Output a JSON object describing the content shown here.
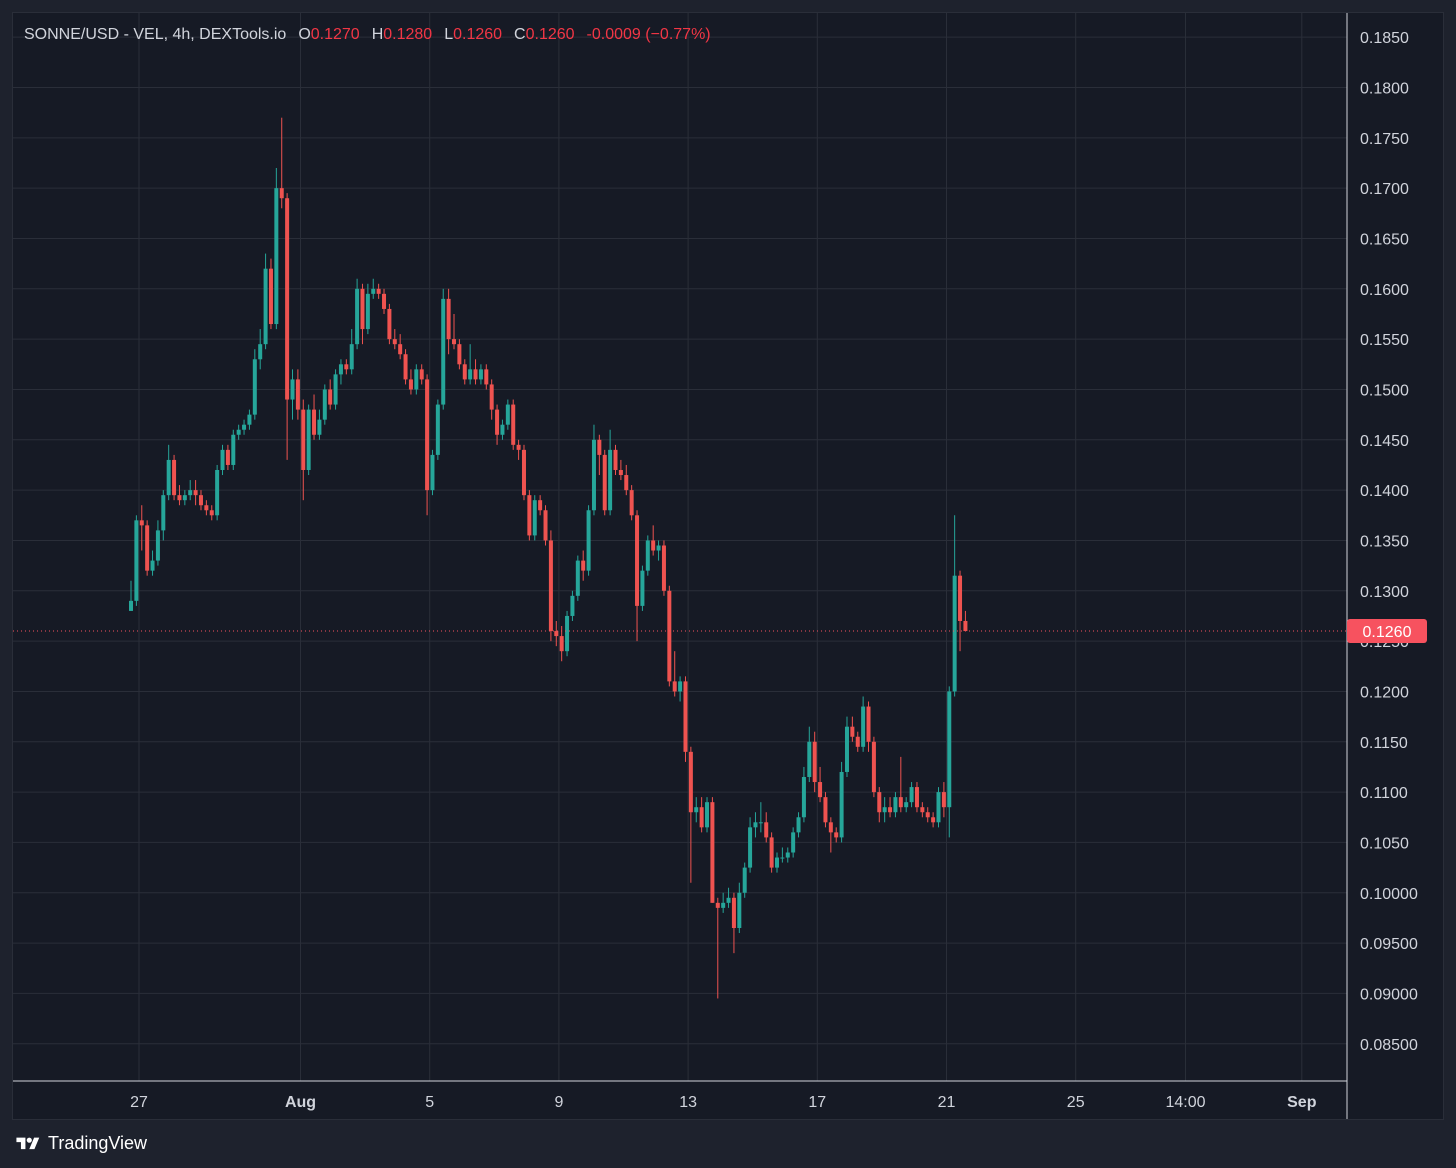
{
  "legend": {
    "symbol": "SONNE/USD - VEL, 4h, DEXTools.io",
    "open_label": "O",
    "open": "0.1270",
    "high_label": "H",
    "high": "0.1280",
    "low_label": "L",
    "low": "0.1260",
    "close_label": "C",
    "close": "0.1260",
    "change": "-0.0009 (−0.77%)"
  },
  "footer": {
    "brand": "TradingView",
    "logo_icon": "tradingview-logo-icon"
  },
  "colors": {
    "up": "#26a69a",
    "down": "#ef5350",
    "grid": "#2a2e39",
    "text": "#d1d4dc",
    "price_tag": "#f7525f",
    "background": "#161a25"
  },
  "chart_data": {
    "type": "candlestick",
    "title": "SONNE/USD - VEL, 4h, DEXTools.io",
    "interval": "4h",
    "last_price": {
      "value": 0.126,
      "label": "0.1260"
    },
    "y_axis": {
      "side": "right",
      "ylim": [
        0.0813,
        0.1874
      ],
      "ticks": [
        0.185,
        0.18,
        0.175,
        0.17,
        0.165,
        0.16,
        0.155,
        0.15,
        0.145,
        0.14,
        0.135,
        0.13,
        0.125,
        0.12,
        0.115,
        0.11,
        0.105,
        0.1,
        0.095,
        0.09,
        0.085
      ],
      "tick_labels": [
        "0.1850",
        "0.1800",
        "0.1750",
        "0.1700",
        "0.1650",
        "0.1600",
        "0.1550",
        "0.1500",
        "0.1450",
        "0.1400",
        "0.1350",
        "0.1300",
        "0.1250",
        "0.1200",
        "0.1150",
        "0.1100",
        "0.1050",
        "0.10000",
        "0.09500",
        "0.09000",
        "0.08500"
      ]
    },
    "x_axis": {
      "ticks": [
        {
          "label": "27",
          "day": 0,
          "bold": false
        },
        {
          "label": "Aug",
          "day": 5,
          "bold": true
        },
        {
          "label": "5",
          "day": 9,
          "bold": false
        },
        {
          "label": "9",
          "day": 13,
          "bold": false
        },
        {
          "label": "13",
          "day": 17,
          "bold": false
        },
        {
          "label": "17",
          "day": 21,
          "bold": false
        },
        {
          "label": "21",
          "day": 25,
          "bold": false
        },
        {
          "label": "25",
          "day": 29,
          "bold": false
        },
        {
          "label": "14:00",
          "day": 32.4,
          "bold": false
        },
        {
          "label": "Sep",
          "day": 36,
          "bold": true
        }
      ]
    },
    "grid": true,
    "candles": [
      [
        0.128,
        0.131,
        0.128,
        0.129
      ],
      [
        0.129,
        0.1375,
        0.1285,
        0.137
      ],
      [
        0.137,
        0.1385,
        0.134,
        0.1365
      ],
      [
        0.1365,
        0.137,
        0.1315,
        0.132
      ],
      [
        0.132,
        0.134,
        0.1315,
        0.133
      ],
      [
        0.133,
        0.137,
        0.1325,
        0.136
      ],
      [
        0.136,
        0.14,
        0.135,
        0.1395
      ],
      [
        0.1395,
        0.1445,
        0.139,
        0.143
      ],
      [
        0.143,
        0.1435,
        0.139,
        0.1395
      ],
      [
        0.1395,
        0.1405,
        0.1385,
        0.139
      ],
      [
        0.139,
        0.14,
        0.1385,
        0.1395
      ],
      [
        0.1395,
        0.141,
        0.139,
        0.14
      ],
      [
        0.14,
        0.141,
        0.1385,
        0.1395
      ],
      [
        0.1395,
        0.14,
        0.138,
        0.1385
      ],
      [
        0.1385,
        0.139,
        0.1375,
        0.138
      ],
      [
        0.138,
        0.1385,
        0.137,
        0.1375
      ],
      [
        0.1375,
        0.1425,
        0.137,
        0.142
      ],
      [
        0.142,
        0.1445,
        0.1415,
        0.144
      ],
      [
        0.144,
        0.1445,
        0.142,
        0.1425
      ],
      [
        0.1425,
        0.146,
        0.142,
        0.1455
      ],
      [
        0.1455,
        0.1465,
        0.145,
        0.146
      ],
      [
        0.146,
        0.147,
        0.1455,
        0.1465
      ],
      [
        0.1465,
        0.148,
        0.146,
        0.1475
      ],
      [
        0.1475,
        0.154,
        0.147,
        0.153
      ],
      [
        0.153,
        0.156,
        0.152,
        0.1545
      ],
      [
        0.1545,
        0.1635,
        0.154,
        0.162
      ],
      [
        0.162,
        0.163,
        0.156,
        0.1565
      ],
      [
        0.1565,
        0.172,
        0.156,
        0.17
      ],
      [
        0.17,
        0.177,
        0.168,
        0.169
      ],
      [
        0.169,
        0.1695,
        0.143,
        0.149
      ],
      [
        0.149,
        0.152,
        0.147,
        0.151
      ],
      [
        0.151,
        0.152,
        0.147,
        0.148
      ],
      [
        0.148,
        0.149,
        0.139,
        0.142
      ],
      [
        0.142,
        0.1485,
        0.1415,
        0.148
      ],
      [
        0.148,
        0.1495,
        0.145,
        0.1455
      ],
      [
        0.1455,
        0.148,
        0.145,
        0.147
      ],
      [
        0.147,
        0.1505,
        0.1465,
        0.15
      ],
      [
        0.15,
        0.151,
        0.148,
        0.1485
      ],
      [
        0.1485,
        0.152,
        0.148,
        0.1515
      ],
      [
        0.1515,
        0.153,
        0.1505,
        0.1525
      ],
      [
        0.1525,
        0.153,
        0.1515,
        0.152
      ],
      [
        0.152,
        0.156,
        0.1515,
        0.1545
      ],
      [
        0.1545,
        0.161,
        0.154,
        0.16
      ],
      [
        0.16,
        0.1605,
        0.1545,
        0.156
      ],
      [
        0.156,
        0.1605,
        0.1555,
        0.1595
      ],
      [
        0.1595,
        0.161,
        0.159,
        0.16
      ],
      [
        0.16,
        0.1605,
        0.159,
        0.1595
      ],
      [
        0.1595,
        0.16,
        0.1575,
        0.158
      ],
      [
        0.158,
        0.1585,
        0.1545,
        0.155
      ],
      [
        0.155,
        0.156,
        0.154,
        0.1545
      ],
      [
        0.1545,
        0.1555,
        0.153,
        0.1535
      ],
      [
        0.1535,
        0.154,
        0.1505,
        0.151
      ],
      [
        0.151,
        0.152,
        0.1495,
        0.15
      ],
      [
        0.15,
        0.1525,
        0.1495,
        0.152
      ],
      [
        0.152,
        0.1525,
        0.1505,
        0.151
      ],
      [
        0.151,
        0.1515,
        0.1375,
        0.14
      ],
      [
        0.14,
        0.144,
        0.1395,
        0.1435
      ],
      [
        0.1435,
        0.149,
        0.143,
        0.1485
      ],
      [
        0.1485,
        0.16,
        0.148,
        0.159
      ],
      [
        0.159,
        0.16,
        0.1535,
        0.155
      ],
      [
        0.155,
        0.1575,
        0.154,
        0.1545
      ],
      [
        0.1545,
        0.155,
        0.152,
        0.1525
      ],
      [
        0.1525,
        0.153,
        0.1505,
        0.151
      ],
      [
        0.151,
        0.1545,
        0.1505,
        0.152
      ],
      [
        0.152,
        0.153,
        0.1505,
        0.151
      ],
      [
        0.151,
        0.1525,
        0.1505,
        0.152
      ],
      [
        0.152,
        0.1525,
        0.15,
        0.1505
      ],
      [
        0.1505,
        0.151,
        0.147,
        0.148
      ],
      [
        0.148,
        0.1485,
        0.1445,
        0.1455
      ],
      [
        0.1455,
        0.147,
        0.145,
        0.1465
      ],
      [
        0.1465,
        0.149,
        0.146,
        0.1485
      ],
      [
        0.1485,
        0.149,
        0.144,
        0.1445
      ],
      [
        0.1445,
        0.145,
        0.143,
        0.144
      ],
      [
        0.144,
        0.1445,
        0.139,
        0.1395
      ],
      [
        0.1395,
        0.14,
        0.135,
        0.1355
      ],
      [
        0.1355,
        0.1395,
        0.135,
        0.139
      ],
      [
        0.139,
        0.1395,
        0.1375,
        0.138
      ],
      [
        0.138,
        0.1385,
        0.1345,
        0.135
      ],
      [
        0.135,
        0.136,
        0.125,
        0.126
      ],
      [
        0.126,
        0.127,
        0.1245,
        0.1255
      ],
      [
        0.1255,
        0.1265,
        0.123,
        0.124
      ],
      [
        0.124,
        0.128,
        0.1235,
        0.1275
      ],
      [
        0.1275,
        0.13,
        0.127,
        0.1295
      ],
      [
        0.1295,
        0.1335,
        0.129,
        0.133
      ],
      [
        0.133,
        0.134,
        0.131,
        0.132
      ],
      [
        0.132,
        0.1385,
        0.1315,
        0.138
      ],
      [
        0.138,
        0.1465,
        0.1375,
        0.145
      ],
      [
        0.145,
        0.1455,
        0.1415,
        0.1435
      ],
      [
        0.1435,
        0.144,
        0.1375,
        0.138
      ],
      [
        0.138,
        0.146,
        0.1375,
        0.144
      ],
      [
        0.144,
        0.1445,
        0.1415,
        0.142
      ],
      [
        0.142,
        0.143,
        0.141,
        0.1415
      ],
      [
        0.1415,
        0.1425,
        0.1395,
        0.14
      ],
      [
        0.14,
        0.1405,
        0.137,
        0.1375
      ],
      [
        0.1375,
        0.138,
        0.125,
        0.1285
      ],
      [
        0.1285,
        0.1325,
        0.128,
        0.132
      ],
      [
        0.132,
        0.1355,
        0.1315,
        0.135
      ],
      [
        0.135,
        0.1365,
        0.1335,
        0.134
      ],
      [
        0.134,
        0.135,
        0.133,
        0.1345
      ],
      [
        0.1345,
        0.135,
        0.1295,
        0.13
      ],
      [
        0.13,
        0.1305,
        0.1205,
        0.121
      ],
      [
        0.121,
        0.124,
        0.1195,
        0.12
      ],
      [
        0.12,
        0.1215,
        0.119,
        0.121
      ],
      [
        0.121,
        0.1215,
        0.113,
        0.114
      ],
      [
        0.114,
        0.1145,
        0.101,
        0.108
      ],
      [
        0.108,
        0.1095,
        0.107,
        0.1085
      ],
      [
        0.1085,
        0.1095,
        0.106,
        0.1065
      ],
      [
        0.1065,
        0.1095,
        0.106,
        0.109
      ],
      [
        0.109,
        0.1095,
        0.099,
        0.099
      ],
      [
        0.099,
        0.0995,
        0.0895,
        0.0985
      ],
      [
        0.0985,
        0.1,
        0.098,
        0.099
      ],
      [
        0.099,
        0.1005,
        0.0985,
        0.0995
      ],
      [
        0.0995,
        0.1,
        0.094,
        0.0965
      ],
      [
        0.0965,
        0.101,
        0.096,
        0.1
      ],
      [
        0.1,
        0.103,
        0.0995,
        0.1025
      ],
      [
        0.1025,
        0.1075,
        0.102,
        0.1065
      ],
      [
        0.1065,
        0.108,
        0.1055,
        0.107
      ],
      [
        0.107,
        0.109,
        0.106,
        0.107
      ],
      [
        0.107,
        0.108,
        0.105,
        0.1055
      ],
      [
        0.1055,
        0.106,
        0.102,
        0.1025
      ],
      [
        0.1025,
        0.104,
        0.102,
        0.1035
      ],
      [
        0.1035,
        0.1045,
        0.103,
        0.1035
      ],
      [
        0.1035,
        0.1045,
        0.103,
        0.104
      ],
      [
        0.104,
        0.1065,
        0.1035,
        0.106
      ],
      [
        0.106,
        0.108,
        0.1055,
        0.1075
      ],
      [
        0.1075,
        0.1125,
        0.107,
        0.1115
      ],
      [
        0.1115,
        0.1165,
        0.111,
        0.115
      ],
      [
        0.115,
        0.116,
        0.11,
        0.111
      ],
      [
        0.111,
        0.1125,
        0.109,
        0.1095
      ],
      [
        0.1095,
        0.11,
        0.1065,
        0.107
      ],
      [
        0.107,
        0.1075,
        0.104,
        0.106
      ],
      [
        0.106,
        0.1065,
        0.105,
        0.1055
      ],
      [
        0.1055,
        0.113,
        0.105,
        0.112
      ],
      [
        0.112,
        0.1175,
        0.1115,
        0.1165
      ],
      [
        0.1165,
        0.1175,
        0.115,
        0.1155
      ],
      [
        0.1155,
        0.116,
        0.114,
        0.1145
      ],
      [
        0.1145,
        0.1195,
        0.114,
        0.1185
      ],
      [
        0.1185,
        0.119,
        0.114,
        0.115
      ],
      [
        0.115,
        0.1155,
        0.1095,
        0.11
      ],
      [
        0.11,
        0.1105,
        0.107,
        0.108
      ],
      [
        0.108,
        0.1095,
        0.107,
        0.1085
      ],
      [
        0.1085,
        0.1095,
        0.1075,
        0.108
      ],
      [
        0.108,
        0.11,
        0.1075,
        0.1095
      ],
      [
        0.1095,
        0.1135,
        0.108,
        0.1085
      ],
      [
        0.1085,
        0.1095,
        0.108,
        0.109
      ],
      [
        0.109,
        0.111,
        0.1085,
        0.1105
      ],
      [
        0.1105,
        0.111,
        0.108,
        0.1085
      ],
      [
        0.1085,
        0.109,
        0.1075,
        0.108
      ],
      [
        0.108,
        0.1085,
        0.107,
        0.1075
      ],
      [
        0.1075,
        0.108,
        0.1065,
        0.107
      ],
      [
        0.107,
        0.1105,
        0.1065,
        0.11
      ],
      [
        0.11,
        0.111,
        0.1075,
        0.1085
      ],
      [
        0.1085,
        0.1205,
        0.1055,
        0.12
      ],
      [
        0.12,
        0.1375,
        0.1195,
        0.1315
      ],
      [
        0.1315,
        0.132,
        0.124,
        0.127
      ],
      [
        0.127,
        0.128,
        0.126,
        0.126
      ]
    ]
  }
}
